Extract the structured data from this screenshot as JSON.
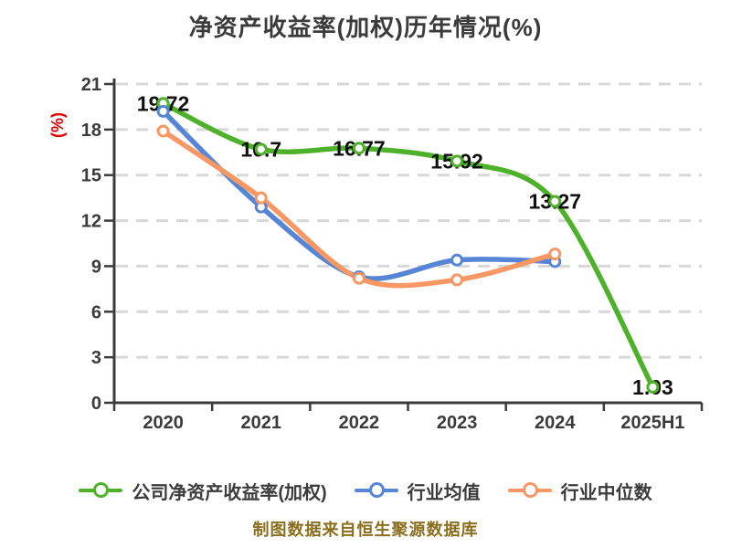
{
  "title": "净资产收益率(加权)历年情况(%)",
  "y_axis_label": "(%)",
  "footer": "制图数据来自恒生聚源数据库",
  "colors": {
    "title_text": "#3b3b3b",
    "axis_text": "#3b3b3b",
    "axis_line": "#3b3b3b",
    "grid_line": "#d8d8d8",
    "data_label": "#111111",
    "y_axis_label_text": "#e00000",
    "footer_text": "#8b6e1e",
    "company_series": "#4db229",
    "industry_mean_series": "#5585d4",
    "industry_median_series": "#f79763",
    "background": "#ffffff"
  },
  "chart_data": {
    "type": "line",
    "title": "净资产收益率(加权)历年情况(%)",
    "categories": [
      "2020",
      "2021",
      "2022",
      "2023",
      "2024",
      "2025H1"
    ],
    "series": [
      {
        "name": "公司净资产收益率(加权)",
        "color": "#4db229",
        "values": [
          19.72,
          16.7,
          16.77,
          15.92,
          13.27,
          1.03
        ],
        "point_labels": [
          "19.72",
          "16.7",
          "16.77",
          "15.92",
          "13.27",
          "1.03"
        ]
      },
      {
        "name": "行业均值",
        "color": "#5585d4",
        "values": [
          19.2,
          12.9,
          8.3,
          9.4,
          9.3,
          null
        ]
      },
      {
        "name": "行业中位数",
        "color": "#f79763",
        "values": [
          17.9,
          13.5,
          8.2,
          8.1,
          9.8,
          null
        ]
      }
    ],
    "ylabel": "(%)",
    "ylim": [
      0,
      21
    ],
    "yticks": [
      0,
      3,
      6,
      9,
      12,
      15,
      18,
      21
    ],
    "grid": true,
    "grid_style": "dashed",
    "smooth": true,
    "legend_position": "bottom"
  },
  "legend": {
    "items": [
      {
        "label": "公司净资产收益率(加权)",
        "color": "#4db229"
      },
      {
        "label": "行业均值",
        "color": "#5585d4"
      },
      {
        "label": "行业中位数",
        "color": "#f79763"
      }
    ]
  }
}
